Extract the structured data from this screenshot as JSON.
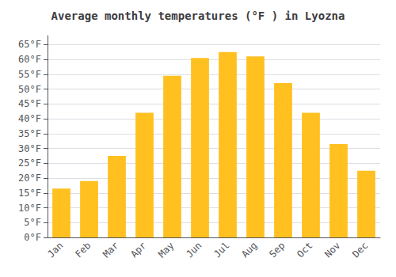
{
  "chart_data": {
    "type": "bar",
    "title": "Average monthly temperatures (°F ) in Lyozna",
    "categories": [
      "Jan",
      "Feb",
      "Mar",
      "Apr",
      "May",
      "Jun",
      "Jul",
      "Aug",
      "Sep",
      "Oct",
      "Nov",
      "Dec"
    ],
    "values": [
      16.5,
      19.0,
      27.5,
      42.0,
      54.5,
      60.5,
      62.5,
      61.0,
      52.0,
      42.0,
      31.5,
      22.5
    ],
    "color": "#FFC020",
    "ylim": [
      0,
      68
    ],
    "yticks": [
      {
        "value": 0,
        "label": "0°F"
      },
      {
        "value": 5,
        "label": "5°F"
      },
      {
        "value": 10,
        "label": "10°F"
      },
      {
        "value": 15,
        "label": "15°F"
      },
      {
        "value": 20,
        "label": "20°F"
      },
      {
        "value": 25,
        "label": "25°F"
      },
      {
        "value": 30,
        "label": "30°F"
      },
      {
        "value": 35,
        "label": "35°F"
      },
      {
        "value": 40,
        "label": "40°F"
      },
      {
        "value": 45,
        "label": "45°F"
      },
      {
        "value": 50,
        "label": "50°F"
      },
      {
        "value": 55,
        "label": "55°F"
      },
      {
        "value": 60,
        "label": "60°F"
      },
      {
        "value": 65,
        "label": "65°F"
      }
    ],
    "grid": true
  }
}
